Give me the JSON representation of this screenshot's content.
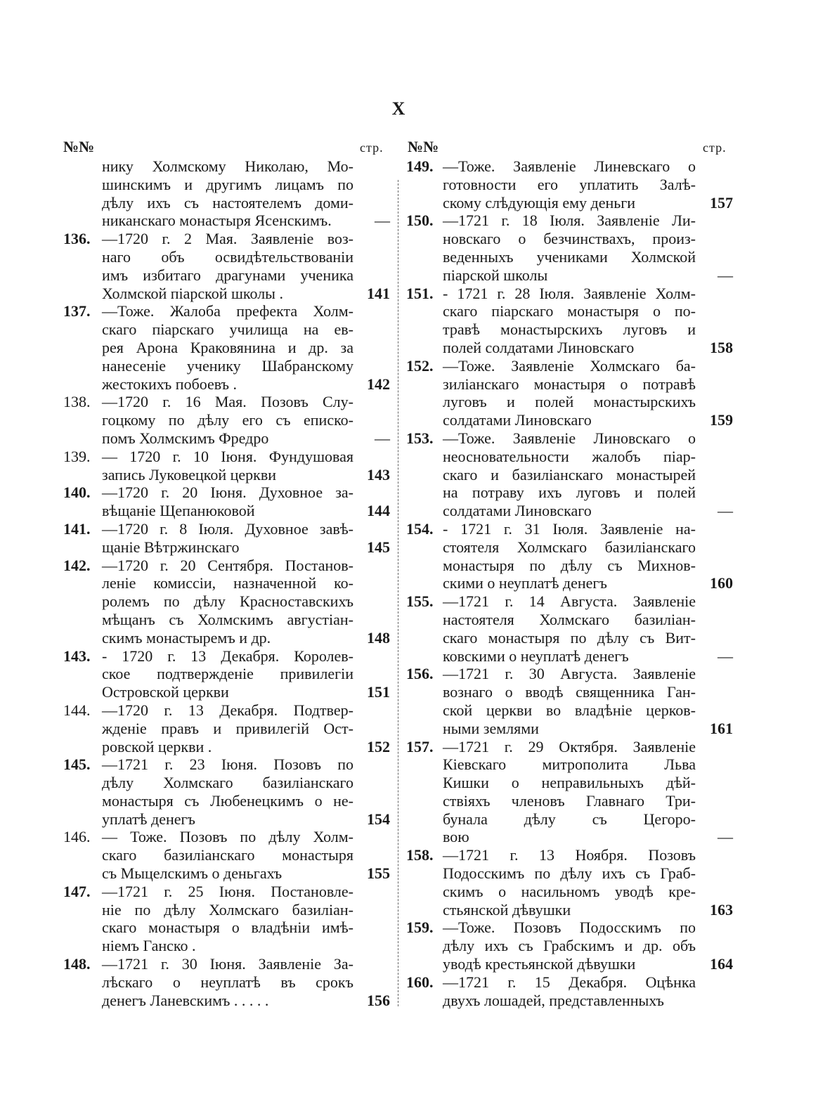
{
  "page_number": "X",
  "header": {
    "num_label": "№№",
    "page_label": "стр."
  },
  "left": {
    "entries": [
      {
        "num": "",
        "bold": false,
        "lines": [
          "нику Холмскому Николаю, Мо-",
          "шинскимъ и другимъ лицамъ по",
          "дѣлу ихъ съ настоятелемъ доми-",
          "никанскаго монастыря Ясенскимъ."
        ],
        "page": "—"
      },
      {
        "num": "136.",
        "bold": true,
        "lines": [
          "—1720 г. 2 Мая. Заявленіе воз-",
          "наго объ освидѣтельствованіи",
          "имъ избитаго драгунами ученика",
          "Холмской піарской школы ."
        ],
        "page": "141"
      },
      {
        "num": "137.",
        "bold": true,
        "lines": [
          "—Тоже. Жалоба префекта Холм-",
          "скаго піарскаго училища на ев-",
          "рея Арона Краковянина и др. за",
          "нанесеніе ученику Шабранскому",
          "жестокихъ побоевъ ."
        ],
        "page": "142"
      },
      {
        "num": "138.",
        "bold": false,
        "lines": [
          "—1720 г. 16 Мая. Позовъ Слу-",
          "гоцкому по дѣлу его съ еписко-",
          "помъ Холмскимъ Фредро"
        ],
        "page": "—"
      },
      {
        "num": "139.",
        "bold": false,
        "lines": [
          "— 1720 г. 10 Іюня. Фундушовая",
          "запись Луковецкой церкви"
        ],
        "page": "143"
      },
      {
        "num": "140.",
        "bold": true,
        "lines": [
          "—1720 г. 20 Іюня. Духовное за-",
          "вѣщаніе Щепанюковой"
        ],
        "page": "144"
      },
      {
        "num": "141.",
        "bold": true,
        "lines": [
          "—1720 г. 8 Іюля. Духовное завѣ-",
          "щаніе Вѣтржинскаго"
        ],
        "page": "145"
      },
      {
        "num": "142.",
        "bold": true,
        "lines": [
          "—1720 г. 20 Сентября. Постанов-",
          "леніе комиссіи, назначенной ко-",
          "ролемъ по дѣлу Красноставскихъ",
          "мѣщанъ съ Холмскимъ августіан-",
          "скимъ монастыремъ и др."
        ],
        "page": "148"
      },
      {
        "num": "143.",
        "bold": true,
        "lines": [
          "- 1720 г. 13 Декабря. Королев-",
          "ское подтвержденіе привилегіи",
          "Островской церкви"
        ],
        "page": "151"
      },
      {
        "num": "144.",
        "bold": false,
        "lines": [
          "—1720 г. 13 Декабря. Подтвер-",
          "жденіе правъ и привилегій Ост-",
          "ровской церкви ."
        ],
        "page": "152"
      },
      {
        "num": "145.",
        "bold": true,
        "lines": [
          "—1721 г. 23 Іюня. Позовъ по",
          "дѣлу Холмскаго базиліанскаго",
          "монастыря съ Любенецкимъ о не-",
          "уплатѣ денегъ"
        ],
        "page": "154"
      },
      {
        "num": "146.",
        "bold": false,
        "lines": [
          "— Тоже. Позовъ по дѣлу Холм-",
          "скаго базиліанскаго монастыря",
          "съ Мыцелскимъ о деньгахъ"
        ],
        "page": "155"
      },
      {
        "num": "147.",
        "bold": true,
        "lines": [
          "—1721 г. 25 Іюня. Постановле-",
          "ніе по дѣлу Холмскаго базиліан-",
          "скаго монастыря о владѣніи имѣ-",
          "ніемъ Ганско ."
        ],
        "page": ""
      },
      {
        "num": "148.",
        "bold": true,
        "lines": [
          "—1721 г. 30 Іюня. Заявленіе За-",
          "лѣскаго о неуплатѣ въ срокъ",
          "денегъ Ланевскимъ . . . . ."
        ],
        "page": "156"
      }
    ]
  },
  "right": {
    "entries": [
      {
        "num": "149.",
        "bold": true,
        "lines": [
          "—Тоже. Заявленіе Линевскаго о",
          "готовности его уплатить Залѣ-",
          "скому слѣдующія ему деньги"
        ],
        "page": "157"
      },
      {
        "num": "150.",
        "bold": true,
        "lines": [
          "—1721 г. 18 Іюля. Заявленіе Ли-",
          "новскаго о безчинствахъ, произ-",
          "веденныхъ учениками Холмской",
          "піарской школы"
        ],
        "page": "—"
      },
      {
        "num": "151.",
        "bold": true,
        "lines": [
          "- 1721 г. 28 Іюля. Заявленіе Холм-",
          "скаго піарскаго монастыря о по-",
          "травѣ монастырскихъ луговъ и",
          "полей солдатами Линовскаго"
        ],
        "page": "158"
      },
      {
        "num": "152.",
        "bold": true,
        "lines": [
          "—Тоже. Заявленіе Холмскаго ба-",
          "зиліанскаго монастыря о потравѣ",
          "луговъ и полей монастырскихъ",
          "солдатами Линовскаго"
        ],
        "page": "159"
      },
      {
        "num": "153.",
        "bold": true,
        "lines": [
          "—Тоже. Заявленіе Линовскаго о",
          "неосновательности жалобъ піар-",
          "скаго и базиліанскаго монастырей",
          "на потраву ихъ луговъ и полей",
          "солдатами Линовскаго"
        ],
        "page": "—"
      },
      {
        "num": "154.",
        "bold": true,
        "lines": [
          "- 1721 г. 31 Іюля. Заявленіе на-",
          "стоятеля Холмскаго базиліанскаго",
          "монастыря по дѣлу съ Михнов-",
          "скими о неуплатѣ денегъ"
        ],
        "page": "160"
      },
      {
        "num": "155.",
        "bold": true,
        "lines": [
          "—1721 г. 14 Августа. Заявленіе",
          "настоятеля Холмскаго базиліан-",
          "скаго монастыря по дѣлу съ Вит-",
          "ковскими о неуплатѣ денегъ"
        ],
        "page": "—"
      },
      {
        "num": "156.",
        "bold": true,
        "lines": [
          "—1721 г. 30 Августа. Заявленіе",
          "вознаго о вводѣ священника Ган-",
          "ской церкви во владѣніе церков-",
          "ными землями"
        ],
        "page": "161"
      },
      {
        "num": "157.",
        "bold": true,
        "lines": [
          "—1721 г. 29 Октября. Заявленіе",
          "Кіевскаго митрополита Льва",
          "Кишки о неправильныхъ дѣй-",
          "ствіяхъ членовъ Главнаго Три-",
          "бунала дѣлу съ Цегоро-",
          "вою"
        ],
        "page": "—"
      },
      {
        "num": "158.",
        "bold": true,
        "lines": [
          "—1721 г. 13 Ноября. Позовъ",
          "Подосскимъ по дѣлу ихъ съ Граб-",
          "скимъ о насильномъ уводѣ кре-",
          "стьянской дѣвушки"
        ],
        "page": "163"
      },
      {
        "num": "159.",
        "bold": true,
        "lines": [
          "—Тоже. Позовъ Подосскимъ по",
          "дѣлу ихъ съ Грабскимъ и др. объ",
          "уводѣ крестьянской дѣвушки"
        ],
        "page": "164"
      },
      {
        "num": "160.",
        "bold": true,
        "lines": [
          "—1721 г. 15 Декабря. Оцѣнка",
          "двухъ лошадей, представленныхъ"
        ],
        "page": ""
      }
    ]
  }
}
